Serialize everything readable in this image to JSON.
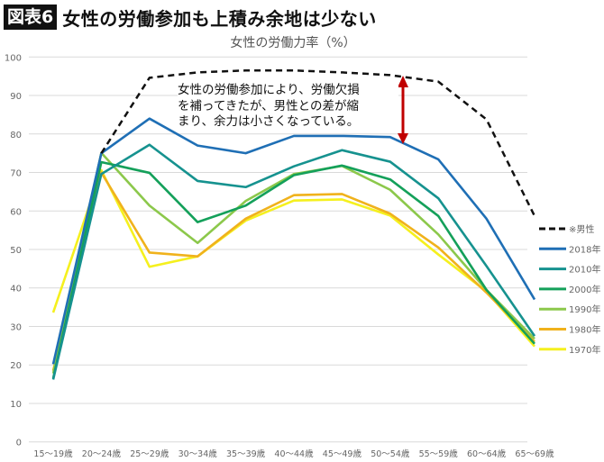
{
  "header": {
    "badge": "図表6",
    "title": "女性の労働参加も上積み余地は少ない"
  },
  "annotation": [
    "女性の労働参加により、労働欠損",
    "を補ってきたが、男性との差が縮",
    "まり、余力は小さくなっている。"
  ],
  "chart_data": {
    "type": "line",
    "title": "女性の労働力率（%）",
    "categories": [
      "15～19歳",
      "20～24歳",
      "25～29歳",
      "30～34歳",
      "35～39歳",
      "40～44歳",
      "45～49歳",
      "50～54歳",
      "55～59歳",
      "60～64歳",
      "65～69歳"
    ],
    "ylim": [
      0,
      100
    ],
    "yticks": [
      0,
      10,
      20,
      30,
      40,
      50,
      60,
      70,
      80,
      90,
      100
    ],
    "grid": true,
    "legend_placement": "right",
    "series": [
      {
        "name": "※男性",
        "color": "#111111",
        "dashed": true,
        "values": [
          null,
          75,
          94.6,
          96,
          96.5,
          96.5,
          96,
          95.3,
          93.6,
          83.8,
          58.7
        ]
      },
      {
        "name": "2018年",
        "color": "#1f6fb5",
        "values": [
          20.2,
          75,
          84,
          77,
          75,
          79.5,
          79.5,
          79.2,
          73.4,
          58,
          37
        ]
      },
      {
        "name": "2010年",
        "color": "#16928f",
        "values": [
          16.2,
          69.6,
          77.2,
          67.8,
          66.2,
          71.6,
          75.8,
          72.8,
          63.3,
          45.7,
          27.5
        ]
      },
      {
        "name": "2000年",
        "color": "#14a05a",
        "values": [
          16.5,
          72.7,
          69.9,
          57.1,
          61.4,
          69.3,
          71.8,
          68.2,
          58.7,
          39.5,
          25.5
        ]
      },
      {
        "name": "1990年",
        "color": "#8cc84b",
        "values": [
          17.8,
          75.1,
          61.4,
          51.7,
          62.6,
          69.6,
          71.7,
          65.5,
          53.9,
          39.5,
          26.8
        ]
      },
      {
        "name": "1980年",
        "color": "#f0b21c",
        "values": [
          18.5,
          70.0,
          49.2,
          48.2,
          58.0,
          64.1,
          64.4,
          59.3,
          50.5,
          38.8,
          26.0
        ]
      },
      {
        "name": "1970年",
        "color": "#f5f01e",
        "values": [
          33.6,
          70.6,
          45.5,
          48.2,
          57.5,
          62.7,
          63.0,
          58.8,
          48.7,
          39.1,
          24.8
        ]
      }
    ],
    "arrow_color": "#c00000"
  }
}
